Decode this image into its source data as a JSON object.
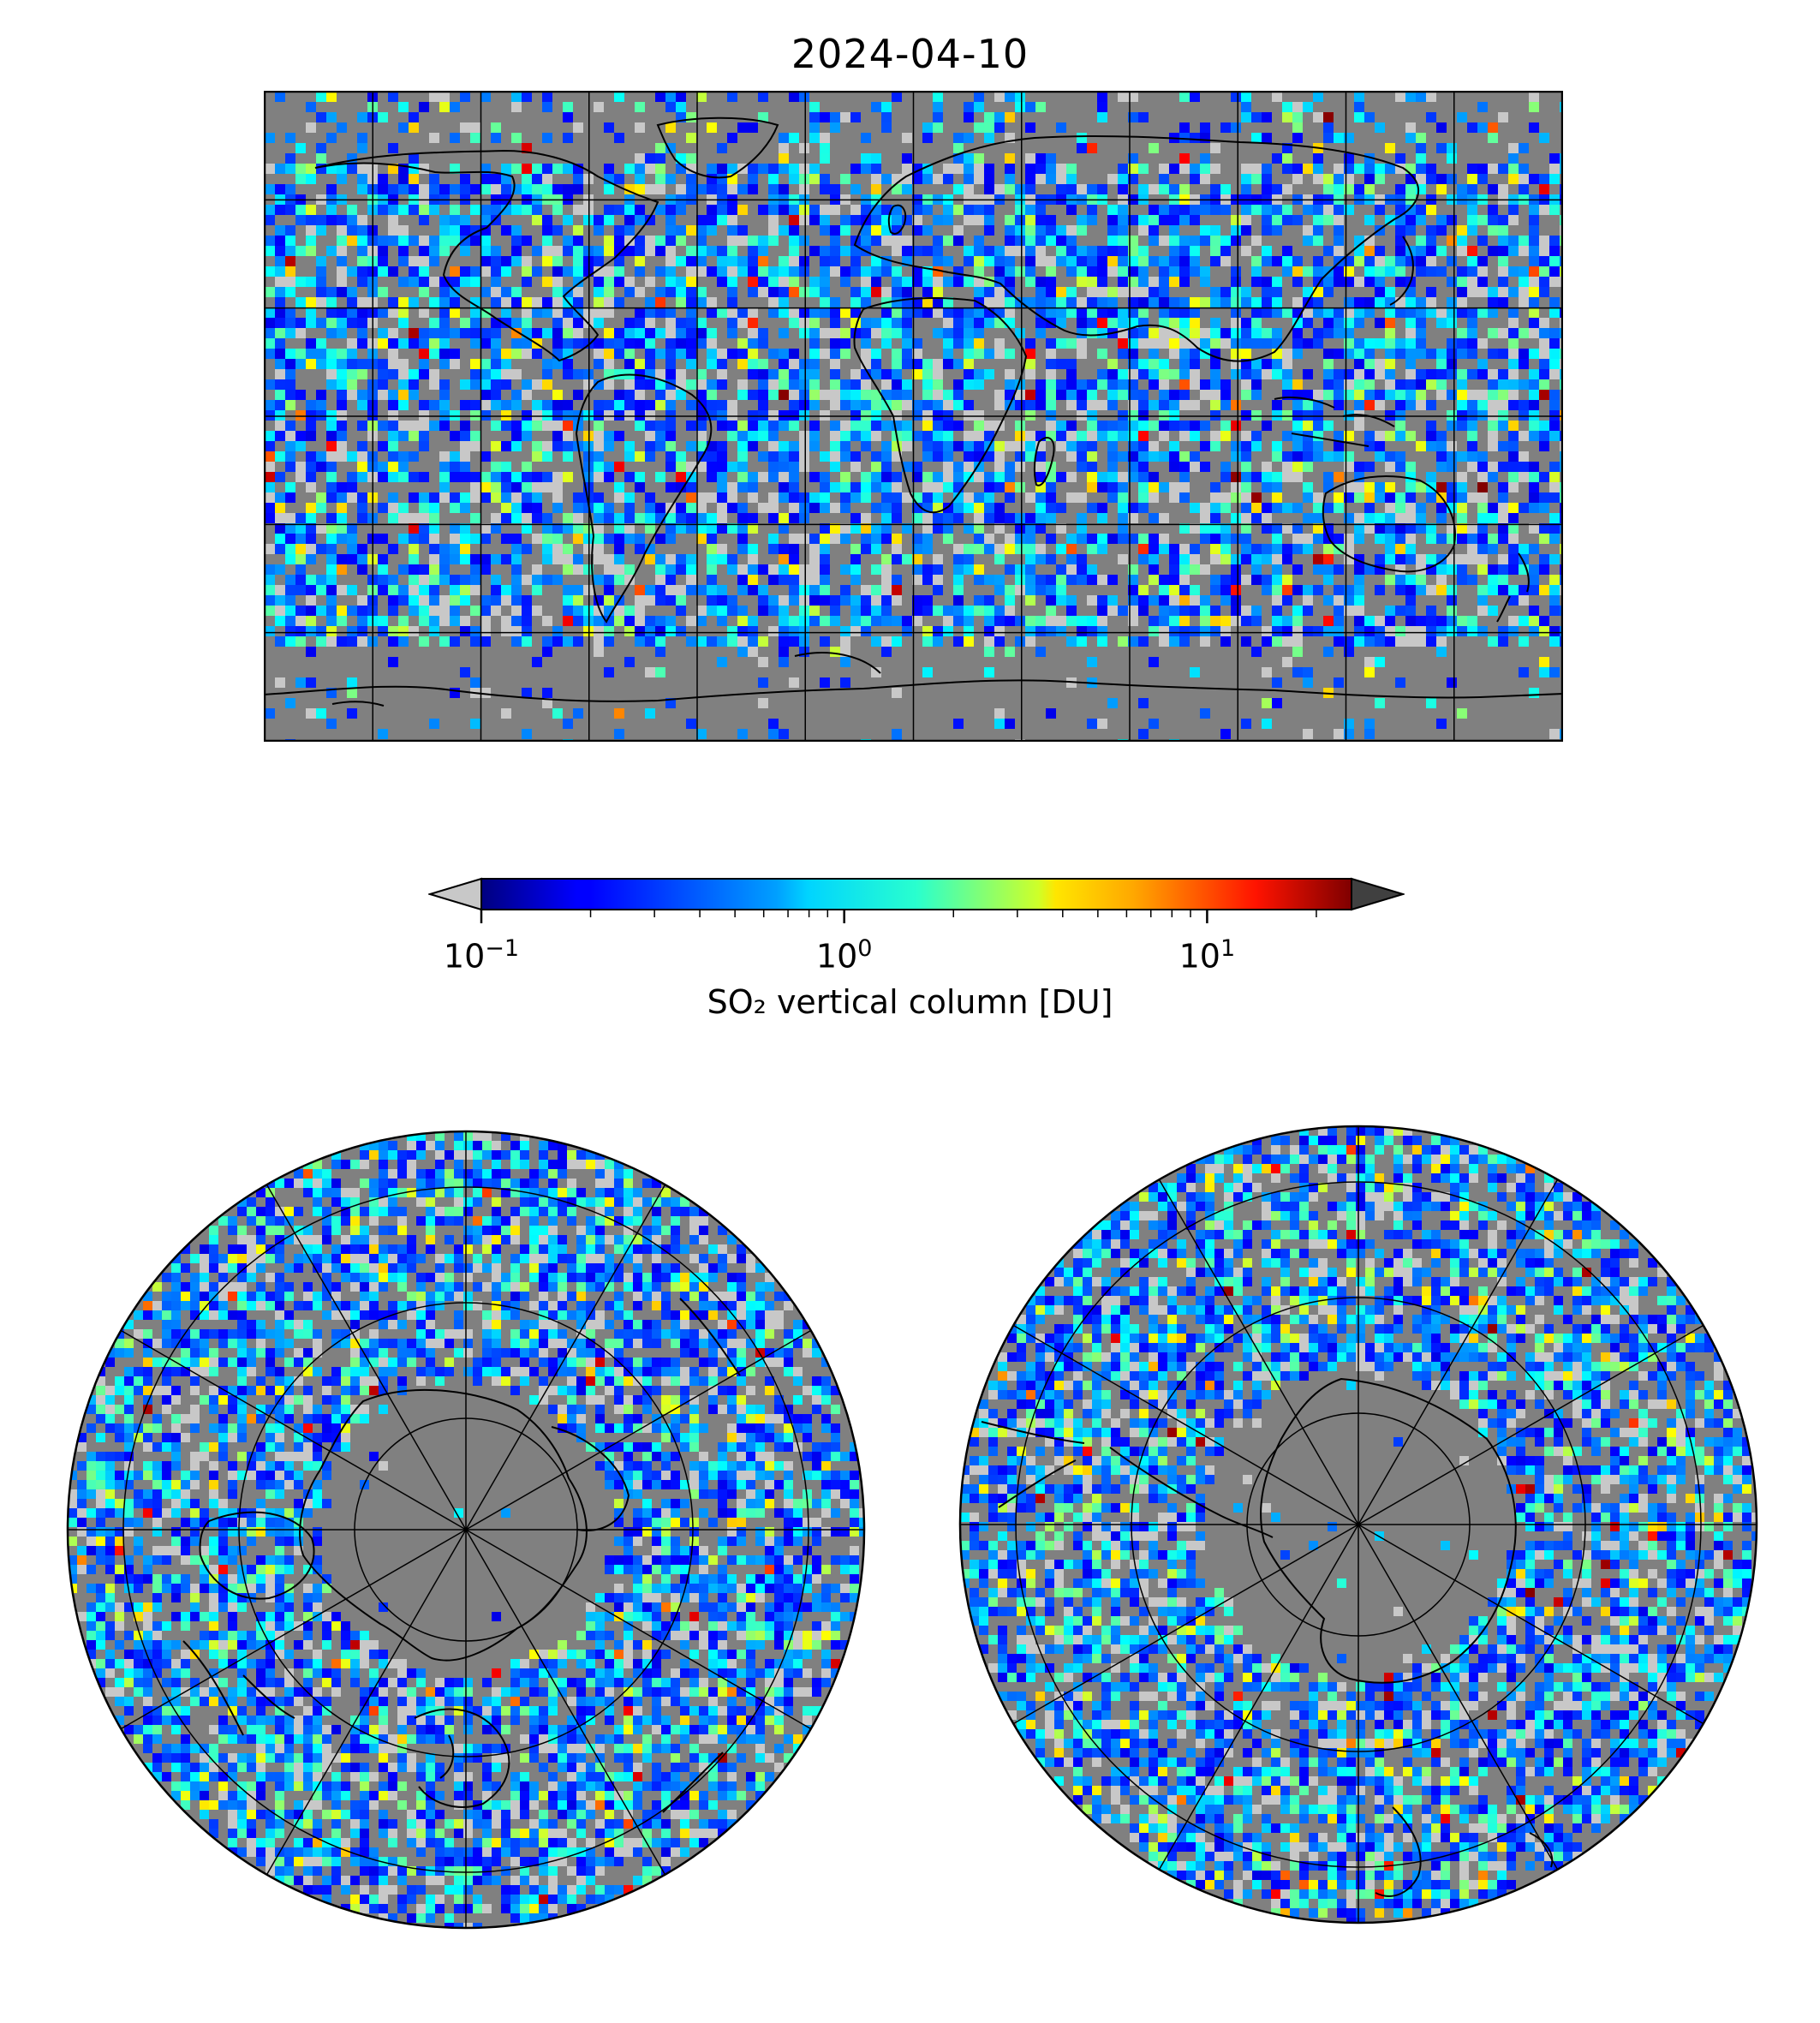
{
  "title": "2024-04-10",
  "colorbar": {
    "label": "SO₂ vertical column [DU]",
    "scale": "log",
    "colormap": "jet",
    "range": [
      0.1,
      25
    ],
    "extend": "both",
    "under_color": "#c8c8c8",
    "over_color": "#404040",
    "ticks": [
      {
        "value": 0.1,
        "base": "10",
        "exp": "−1"
      },
      {
        "value": 1,
        "base": "10",
        "exp": "0"
      },
      {
        "value": 10,
        "base": "10",
        "exp": "1"
      }
    ]
  },
  "panels": [
    {
      "name": "global",
      "projection": "plate-carree",
      "graticule_deg": 30
    },
    {
      "name": "north-polar",
      "projection": "north-polar-stereographic",
      "graticule_deg": 30
    },
    {
      "name": "south-polar",
      "projection": "south-polar-stereographic",
      "graticule_deg": 30
    }
  ],
  "colors": {
    "map_background": "#808080",
    "coastline": "#000000",
    "gridline": "#000000"
  }
}
